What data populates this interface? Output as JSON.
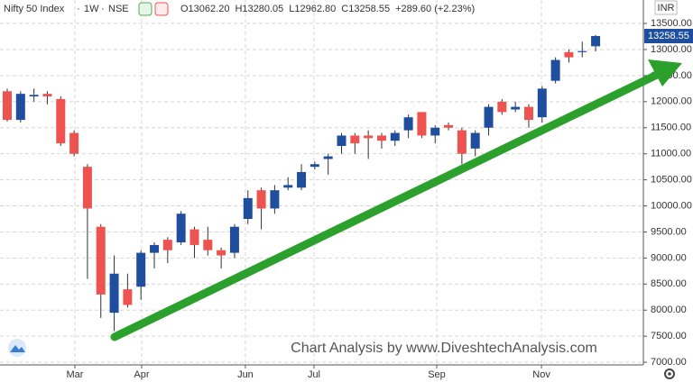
{
  "chart_data": {
    "type": "candlestick",
    "symbol": "Nifty 50 Index",
    "interval": "1W",
    "exchange": "NSE",
    "legend_text": [
      "O13062.20",
      "H13280.05",
      "L12962.80",
      "C13258.55",
      "+289.60 (+2.23%)"
    ],
    "last_price_label": "13258.55",
    "currency": "INR",
    "watermark": "Chart Analysis by www.DiveshtechAnalysis.com",
    "up_color": "#1f4e9e",
    "down_color": "#ef5350",
    "wick_color": "#333333",
    "grid": true,
    "categories": [
      null,
      null,
      null,
      null,
      null,
      null,
      null,
      null,
      null,
      null,
      null,
      null,
      null,
      null,
      null,
      null,
      null,
      null,
      null,
      null,
      null,
      null,
      null,
      null,
      null,
      null,
      null,
      null,
      null,
      null,
      null,
      null,
      null,
      null,
      null,
      null,
      null,
      null,
      null,
      null,
      null,
      null,
      null,
      null,
      null
    ],
    "open": [
      12200,
      11650,
      12100,
      12150,
      12050,
      11400,
      10750,
      9600,
      7950,
      8400,
      8450,
      9100,
      9350,
      9300,
      9550,
      9350,
      9150,
      9100,
      9750,
      10300,
      9950,
      10350,
      10350,
      10750,
      10900,
      11150,
      11350,
      11350,
      11350,
      11250,
      11450,
      11800,
      11350,
      11550,
      11450,
      11100,
      11500,
      12000,
      11850,
      11900,
      11700,
      12400,
      12950,
      12950,
      13062.2
    ],
    "high": [
      12250,
      12200,
      12250,
      12200,
      12100,
      11450,
      10800,
      9650,
      9050,
      8700,
      9150,
      9300,
      9400,
      9900,
      9600,
      9600,
      9200,
      9650,
      10300,
      10350,
      10400,
      10550,
      10800,
      10850,
      11000,
      11400,
      11400,
      11450,
      11400,
      11450,
      11750,
      11800,
      11550,
      11600,
      11500,
      11450,
      11950,
      12050,
      12000,
      11950,
      12300,
      12850,
      13000,
      13150,
      13280.05
    ],
    "low": [
      11620,
      11600,
      12000,
      11950,
      11150,
      10950,
      8600,
      7850,
      7600,
      8050,
      8200,
      8800,
      8900,
      9250,
      9000,
      9050,
      8800,
      9000,
      9650,
      9550,
      9850,
      10300,
      10300,
      10700,
      10600,
      11000,
      11000,
      10900,
      11100,
      11150,
      11300,
      11300,
      11200,
      11450,
      10800,
      10950,
      11350,
      11750,
      11800,
      11500,
      11600,
      12350,
      12750,
      12850,
      12962.8
    ],
    "close": [
      11650,
      12150,
      12130,
      12100,
      11200,
      11000,
      9950,
      8300,
      8700,
      8100,
      9100,
      9250,
      9150,
      9850,
      9250,
      9150,
      9050,
      9600,
      10150,
      9950,
      10300,
      10400,
      10650,
      10800,
      10950,
      11350,
      11200,
      11300,
      11250,
      11400,
      11700,
      11350,
      11500,
      11500,
      11000,
      11400,
      11900,
      11800,
      11900,
      11650,
      12250,
      12800,
      12850,
      12970,
      13258.55
    ],
    "xticks": [
      {
        "value": 5.06,
        "label": "Mar"
      },
      {
        "value": 10.05,
        "label": "Apr"
      },
      {
        "value": 17.81,
        "label": "Jun"
      },
      {
        "value": 22.94,
        "label": "Jul"
      },
      {
        "value": 32.12,
        "label": "Sep"
      },
      {
        "value": 39.95,
        "label": "Nov"
      }
    ],
    "ylim": [
      6950,
      13950
    ],
    "yticks": [
      {
        "value": 7000,
        "label": "7000.00"
      },
      {
        "value": 7500,
        "label": "7500.00"
      },
      {
        "value": 8000,
        "label": "8000.00"
      },
      {
        "value": 8500,
        "label": "8500.00"
      },
      {
        "value": 9000,
        "label": "9000.00"
      },
      {
        "value": 9500,
        "label": "9500.00"
      },
      {
        "value": 10000,
        "label": "10000.00"
      },
      {
        "value": 10500,
        "label": "10500.00"
      },
      {
        "value": 11000,
        "label": "11000.00"
      },
      {
        "value": 11500,
        "label": "11500.00"
      },
      {
        "value": 12000,
        "label": "12000.00"
      },
      {
        "value": 12500,
        "label": "12500.00"
      },
      {
        "value": 13000,
        "label": "13000.00"
      },
      {
        "value": 13500,
        "label": "13500.00"
      }
    ]
  }
}
